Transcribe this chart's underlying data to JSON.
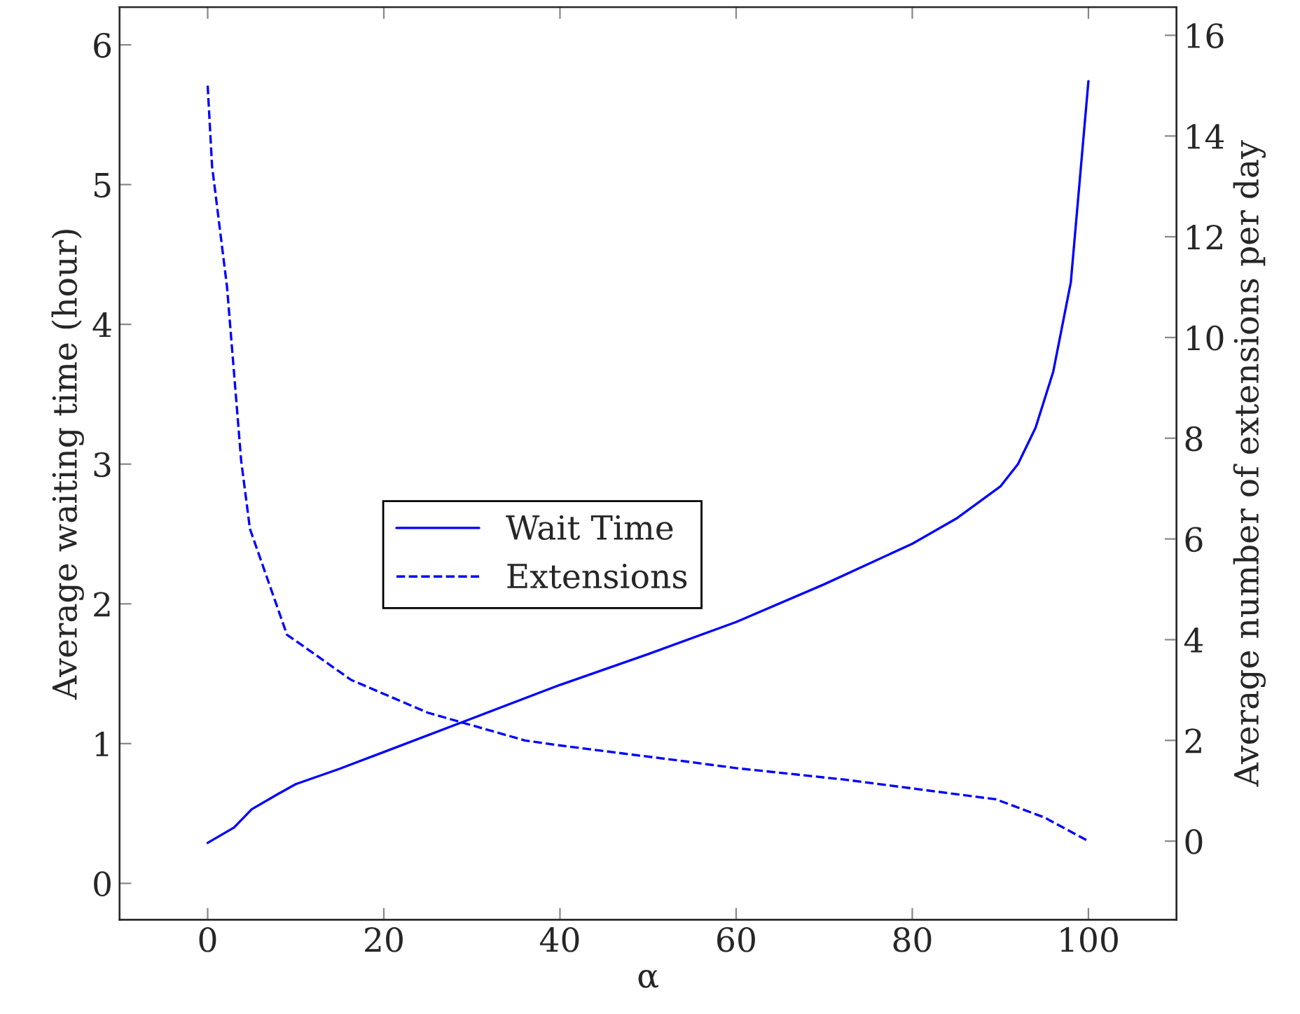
{
  "chart_data": {
    "type": "line",
    "xlabel": "α",
    "ylabel": "Average waiting time (hour)",
    "y2label": "Average number of extensions per day",
    "xlim": [
      -10,
      110
    ],
    "xticks": [
      0,
      20,
      40,
      60,
      80,
      100
    ],
    "ylim": [
      -0.26,
      6.27
    ],
    "yticks": [
      0,
      1,
      2,
      3,
      4,
      5,
      6
    ],
    "y2lim": [
      -1.56,
      16.56
    ],
    "y2ticks": [
      0,
      2,
      4,
      6,
      8,
      10,
      12,
      14,
      16
    ],
    "legend": "center",
    "grid": false,
    "series": [
      {
        "name": "Wait Time",
        "color": "#0000ff",
        "line_style": "solid",
        "x": [
          0,
          3,
          5,
          8,
          10,
          15,
          20,
          30,
          40,
          50,
          60,
          70,
          80,
          85,
          90,
          92,
          94,
          96,
          98,
          100
        ],
        "values": [
          0.29,
          0.4,
          0.53,
          0.64,
          0.71,
          0.82,
          0.94,
          1.18,
          1.42,
          1.64,
          1.87,
          2.14,
          2.43,
          2.61,
          2.84,
          3.0,
          3.26,
          3.66,
          4.3,
          5.74
        ]
      },
      {
        "name": "Extensions",
        "color": "#0000ff",
        "line_style": "dashed",
        "axis": "y2",
        "x": [
          0,
          0.5,
          2.2,
          3.8,
          4.8,
          9,
          16.3,
          25,
          36,
          40,
          53.5,
          60,
          72.4,
          89.5,
          95,
          100
        ],
        "values": [
          15.0,
          13.4,
          11.0,
          7.56,
          6.2,
          4.1,
          3.2,
          2.55,
          2.0,
          1.9,
          1.6,
          1.45,
          1.22,
          0.83,
          0.47,
          0.0
        ]
      }
    ]
  }
}
